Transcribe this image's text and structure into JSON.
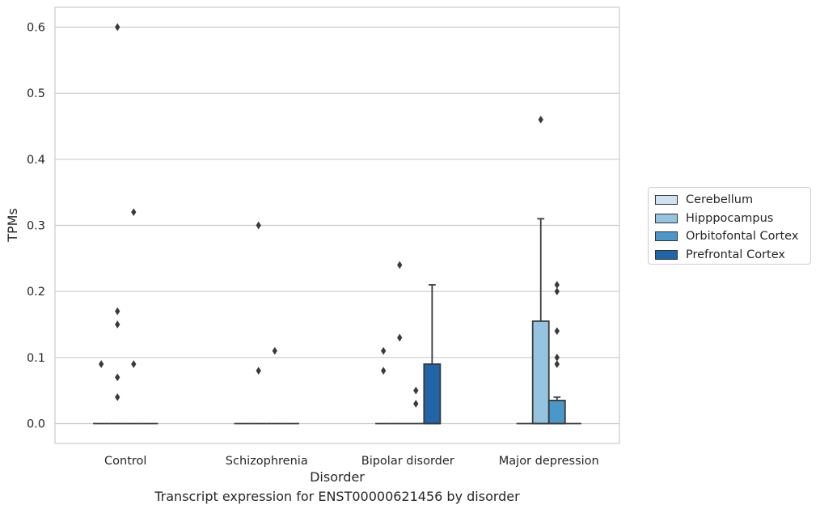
{
  "caption": "Transcript expression for ENST00000621456 by disorder",
  "colors": {
    "Cerebellum": "#d0e1f2",
    "Hipppocampus": "#94c4df",
    "Orbitofontal Cortex": "#4a98c9",
    "Prefrontal Cortex": "#2164a8",
    "grid": "#cccccc",
    "edge": "#3a3a3a"
  },
  "chart_data": {
    "type": "box",
    "xlabel": "Disorder",
    "ylabel": "TPMs",
    "ylim": [
      -0.03,
      0.63
    ],
    "yticks": [
      "0.0",
      "0.1",
      "0.2",
      "0.3",
      "0.4",
      "0.5",
      "0.6"
    ],
    "grid": true,
    "legend_position": "right",
    "categories": [
      "Control",
      "Schizophrenia",
      "Bipolar disorder",
      "Major depression"
    ],
    "series": [
      {
        "name": "Cerebellum",
        "boxes": [
          {
            "q1": 0,
            "median": 0,
            "q3": 0,
            "whisker_low": 0,
            "whisker_high": 0,
            "outliers": [
              0.09
            ]
          },
          {
            "q1": 0,
            "median": 0,
            "q3": 0,
            "whisker_low": 0,
            "whisker_high": 0,
            "outliers": []
          },
          {
            "q1": 0,
            "median": 0,
            "q3": 0,
            "whisker_low": 0,
            "whisker_high": 0,
            "outliers": [
              0.11,
              0.08
            ]
          },
          {
            "q1": 0,
            "median": 0,
            "q3": 0,
            "whisker_low": 0,
            "whisker_high": 0,
            "outliers": []
          }
        ]
      },
      {
        "name": "Hipppocampus",
        "boxes": [
          {
            "q1": 0,
            "median": 0,
            "q3": 0,
            "whisker_low": 0,
            "whisker_high": 0,
            "outliers": [
              0.6,
              0.17,
              0.15,
              0.07,
              0.04
            ]
          },
          {
            "q1": 0,
            "median": 0,
            "q3": 0,
            "whisker_low": 0,
            "whisker_high": 0,
            "outliers": [
              0.3,
              0.08
            ]
          },
          {
            "q1": 0,
            "median": 0,
            "q3": 0,
            "whisker_low": 0,
            "whisker_high": 0,
            "outliers": [
              0.24,
              0.13
            ]
          },
          {
            "q1": 0,
            "median": 0,
            "q3": 0.155,
            "whisker_low": 0,
            "whisker_high": 0.31,
            "outliers": [
              0.46
            ]
          }
        ]
      },
      {
        "name": "Orbitofontal Cortex",
        "boxes": [
          {
            "q1": 0,
            "median": 0,
            "q3": 0,
            "whisker_low": 0,
            "whisker_high": 0,
            "outliers": [
              0.32,
              0.09
            ]
          },
          {
            "q1": 0,
            "median": 0,
            "q3": 0,
            "whisker_low": 0,
            "whisker_high": 0,
            "outliers": [
              0.11
            ]
          },
          {
            "q1": 0,
            "median": 0,
            "q3": 0,
            "whisker_low": 0,
            "whisker_high": 0,
            "outliers": [
              0.05,
              0.03
            ]
          },
          {
            "q1": 0,
            "median": 0,
            "q3": 0.035,
            "whisker_low": 0,
            "whisker_high": 0.04,
            "outliers": [
              0.21,
              0.2,
              0.14,
              0.1,
              0.09
            ]
          }
        ]
      },
      {
        "name": "Prefrontal Cortex",
        "boxes": [
          {
            "q1": 0,
            "median": 0,
            "q3": 0,
            "whisker_low": 0,
            "whisker_high": 0,
            "outliers": []
          },
          {
            "q1": 0,
            "median": 0,
            "q3": 0,
            "whisker_low": 0,
            "whisker_high": 0,
            "outliers": []
          },
          {
            "q1": 0,
            "median": 0,
            "q3": 0.09,
            "whisker_low": 0,
            "whisker_high": 0.21,
            "outliers": []
          },
          {
            "q1": 0,
            "median": 0,
            "q3": 0,
            "whisker_low": 0,
            "whisker_high": 0,
            "outliers": []
          }
        ]
      }
    ]
  }
}
